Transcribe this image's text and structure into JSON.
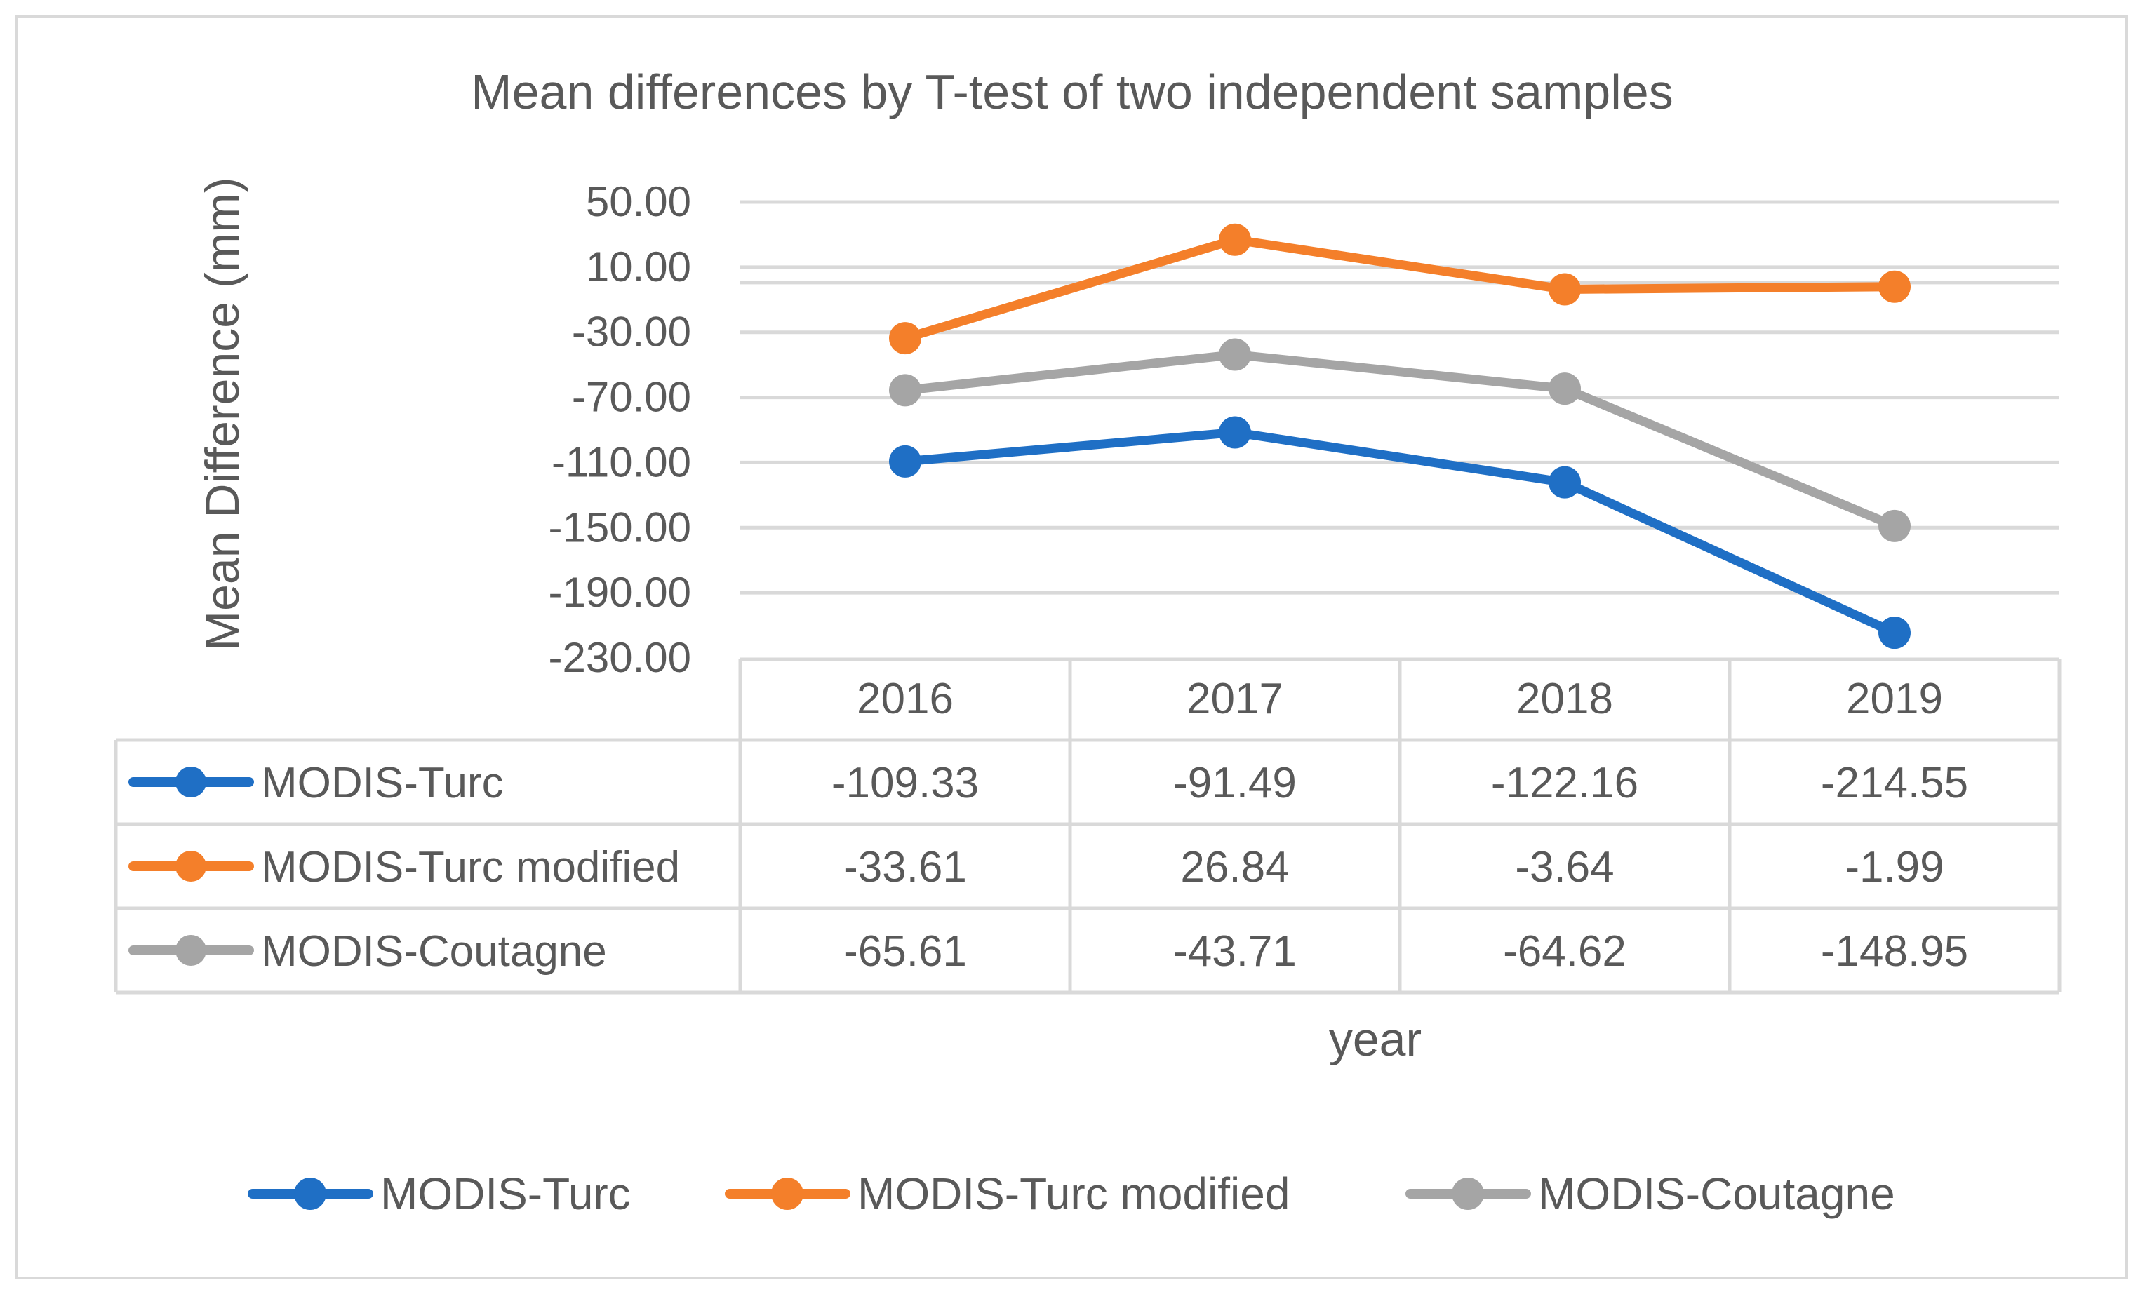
{
  "chart_data": {
    "type": "line",
    "title": "Mean differences by T-test of two independent samples",
    "xlabel": "year",
    "ylabel": "Mean Difference (mm)",
    "categories": [
      "2016",
      "2017",
      "2018",
      "2019"
    ],
    "ylim": [
      -230,
      50
    ],
    "yticks": [
      "50.00",
      "10.00",
      "-30.00",
      "-70.00",
      "-110.00",
      "-150.00",
      "-190.00",
      "-230.00"
    ],
    "grid": true,
    "legend_position": "bottom",
    "data_table": true,
    "series": [
      {
        "name": "MODIS-Turc",
        "color": "#1f6fc5",
        "values": [
          -109.33,
          -91.49,
          -122.16,
          -214.55
        ],
        "labels": [
          "-109.33",
          "-91.49",
          "-122.16",
          "-214.55"
        ]
      },
      {
        "name": "MODIS-Turc modified",
        "color": "#f47f2a",
        "values": [
          -33.61,
          26.84,
          -3.64,
          -1.99
        ],
        "labels": [
          "-33.61",
          "26.84",
          "-3.64",
          "-1.99"
        ]
      },
      {
        "name": "MODIS-Coutagne",
        "color": "#a5a5a5",
        "values": [
          -65.61,
          -43.71,
          -64.62,
          -148.95
        ],
        "labels": [
          "-65.61",
          "-43.71",
          "-64.62",
          "-148.95"
        ]
      }
    ]
  }
}
